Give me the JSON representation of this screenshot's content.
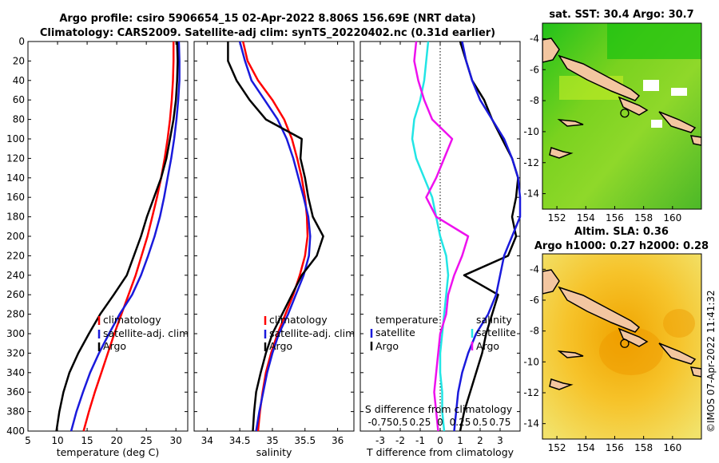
{
  "title": {
    "line1": "Argo profile: csiro 5906654_15 02-Apr-2022 8.806S 156.69E (NRT data)",
    "line2": "Climatology: CARS2009. Satellite-adj clim: synTS_20220402.nc (0.31d earlier)"
  },
  "side_stamp": "©IMOS 07-Apr-2022 11:41:32",
  "colors": {
    "climatology": "#ff0000",
    "satellite": "#1a1adc",
    "argo": "#000000",
    "t_diff": "#22e5e5",
    "s_diff": "#ee11ee"
  },
  "chart_data": [
    {
      "type": "line",
      "id": "temperature",
      "xlabel": "temperature (deg C)",
      "ylabel": "",
      "xlim": [
        5,
        32
      ],
      "ylim": [
        400,
        0
      ],
      "xticks": [
        "5",
        "10",
        "15",
        "20",
        "25",
        "30"
      ],
      "xtick_values": [
        5,
        10,
        15,
        20,
        25,
        30
      ],
      "yticks": [
        "0",
        "20",
        "40",
        "60",
        "80",
        "100",
        "120",
        "140",
        "160",
        "180",
        "200",
        "220",
        "240",
        "260",
        "280",
        "300",
        "320",
        "340",
        "360",
        "380",
        "400"
      ],
      "ytick_values": [
        0,
        20,
        40,
        60,
        80,
        100,
        120,
        140,
        160,
        180,
        200,
        220,
        240,
        260,
        280,
        300,
        320,
        340,
        360,
        380,
        400
      ],
      "legend": [
        "climatology",
        "satellite-adj. clim",
        "Argo"
      ],
      "series": [
        {
          "name": "climatology",
          "color_key": "climatology",
          "x": [
            29.6,
            29.6,
            29.5,
            29.3,
            29.0,
            28.6,
            28.1,
            27.5,
            26.8,
            26.0,
            25.2,
            24.2,
            23.2,
            22.0,
            20.8,
            19.6,
            18.5,
            17.4,
            16.3,
            15.3,
            14.4
          ],
          "y": [
            0,
            20,
            40,
            60,
            80,
            100,
            120,
            140,
            160,
            180,
            200,
            220,
            240,
            260,
            280,
            300,
            320,
            340,
            360,
            380,
            400
          ]
        },
        {
          "name": "satellite-adj. clim",
          "color_key": "satellite",
          "x": [
            30.5,
            30.6,
            30.6,
            30.4,
            30.1,
            29.7,
            29.2,
            28.6,
            28.0,
            27.3,
            26.4,
            25.3,
            24.1,
            22.6,
            20.5,
            18.7,
            17.0,
            15.5,
            14.3,
            13.2,
            12.3
          ],
          "y": [
            0,
            20,
            40,
            60,
            80,
            100,
            120,
            140,
            160,
            180,
            200,
            220,
            240,
            260,
            280,
            300,
            320,
            340,
            360,
            380,
            400
          ]
        },
        {
          "name": "Argo",
          "color_key": "argo",
          "x": [
            30.2,
            30.3,
            30.2,
            30.0,
            29.6,
            29.0,
            28.4,
            27.5,
            26.3,
            25.1,
            24.1,
            22.9,
            21.7,
            19.5,
            17.2,
            15.3,
            13.5,
            12.0,
            11.0,
            10.3,
            9.8
          ],
          "y": [
            0,
            20,
            40,
            60,
            80,
            100,
            120,
            140,
            160,
            180,
            200,
            220,
            240,
            260,
            280,
            300,
            320,
            340,
            360,
            380,
            400
          ]
        }
      ]
    },
    {
      "type": "line",
      "id": "salinity",
      "xlabel": "salinity",
      "xlim": [
        33.8,
        36.25
      ],
      "ylim": [
        400,
        0
      ],
      "xticks": [
        "34",
        "34.5",
        "35",
        "35.5",
        "36"
      ],
      "xtick_values": [
        34,
        34.5,
        35,
        35.5,
        36
      ],
      "legend": [
        "climatology",
        "satellite-adj. clim",
        "Argo"
      ],
      "series": [
        {
          "name": "climatology",
          "color_key": "climatology",
          "x": [
            34.55,
            34.62,
            34.78,
            35.0,
            35.18,
            35.3,
            35.38,
            35.45,
            35.5,
            35.53,
            35.54,
            35.5,
            35.42,
            35.32,
            35.2,
            35.08,
            34.98,
            34.9,
            34.85,
            34.81,
            34.78
          ],
          "y": [
            0,
            20,
            40,
            60,
            80,
            100,
            120,
            140,
            160,
            180,
            200,
            220,
            240,
            260,
            280,
            300,
            320,
            340,
            360,
            380,
            400
          ]
        },
        {
          "name": "satellite-adj. clim",
          "color_key": "satellite",
          "x": [
            34.5,
            34.58,
            34.68,
            34.88,
            35.08,
            35.22,
            35.32,
            35.4,
            35.48,
            35.55,
            35.58,
            35.56,
            35.48,
            35.36,
            35.24,
            35.1,
            35.0,
            34.92,
            34.86,
            34.8,
            34.75
          ],
          "y": [
            0,
            20,
            40,
            60,
            80,
            100,
            120,
            140,
            160,
            180,
            200,
            220,
            240,
            260,
            280,
            300,
            320,
            340,
            360,
            380,
            400
          ]
        },
        {
          "name": "Argo",
          "color_key": "argo",
          "x": [
            34.32,
            34.32,
            34.45,
            34.65,
            34.9,
            35.45,
            35.43,
            35.5,
            35.55,
            35.62,
            35.78,
            35.68,
            35.45,
            35.3,
            35.15,
            35.0,
            34.9,
            34.82,
            34.75,
            34.72,
            34.7
          ],
          "y": [
            0,
            20,
            40,
            60,
            80,
            100,
            120,
            140,
            160,
            180,
            200,
            220,
            240,
            260,
            280,
            300,
            320,
            340,
            360,
            380,
            400
          ]
        }
      ]
    },
    {
      "type": "line",
      "id": "differences",
      "xlabel": "T difference from climatology",
      "xlabel2": "S difference from climatology",
      "xlim": [
        -4,
        4
      ],
      "ylim": [
        400,
        0
      ],
      "xticks": [
        "-3",
        "-2",
        "-1",
        "0",
        "1",
        "2",
        "3"
      ],
      "xtick_values": [
        -3,
        -2,
        -1,
        0,
        1,
        2,
        3
      ],
      "s_ticks": [
        "-0.75",
        "0.5",
        "0.25",
        "0",
        "0.25",
        "0.5",
        "0.75"
      ],
      "legend_left_title": "temperature",
      "legend_right_title": "salinity",
      "legend_left": [
        "satellite",
        "Argo"
      ],
      "legend_right": [
        "satellite",
        "Argo"
      ],
      "series": [
        {
          "name": "temperature satellite",
          "color_key": "t_diff",
          "x": [
            -0.6,
            -0.7,
            -0.8,
            -1.0,
            -1.3,
            -1.4,
            -1.2,
            -0.8,
            -0.4,
            -0.2,
            0.0,
            0.3,
            0.4,
            0.3,
            0.2,
            0.1,
            0.0,
            0.0,
            0.1,
            0.1,
            0.2
          ],
          "y": [
            0,
            20,
            40,
            60,
            80,
            100,
            120,
            140,
            160,
            180,
            200,
            220,
            240,
            260,
            280,
            300,
            320,
            340,
            360,
            380,
            400
          ]
        },
        {
          "name": "temperature Argo",
          "color_key": "argo",
          "x": [
            1.0,
            1.3,
            1.6,
            2.2,
            2.6,
            3.1,
            3.6,
            3.9,
            3.8,
            3.6,
            3.8,
            3.4,
            1.2,
            2.9,
            2.6,
            2.3,
            2.1,
            1.8,
            1.5,
            1.2,
            1.0
          ],
          "y": [
            0,
            20,
            40,
            60,
            80,
            100,
            120,
            140,
            160,
            180,
            200,
            220,
            240,
            260,
            280,
            300,
            320,
            340,
            360,
            380,
            400
          ]
        },
        {
          "name": "salinity satellite",
          "color_key": "satellite",
          "x": [
            1.1,
            1.3,
            1.6,
            2.0,
            2.6,
            3.2,
            3.6,
            3.9,
            4.0,
            4.0,
            3.6,
            3.2,
            3.0,
            2.8,
            2.4,
            1.8,
            1.4,
            1.1,
            0.9,
            0.8,
            0.7
          ],
          "y": [
            0,
            20,
            40,
            60,
            80,
            100,
            120,
            140,
            160,
            180,
            200,
            220,
            240,
            260,
            280,
            300,
            320,
            340,
            360,
            380,
            400
          ]
        },
        {
          "name": "salinity Argo",
          "color_key": "s_diff",
          "x": [
            -1.2,
            -1.3,
            -1.1,
            -0.8,
            -0.4,
            0.6,
            0.2,
            -0.2,
            -0.7,
            -0.2,
            1.4,
            1.1,
            0.7,
            0.4,
            0.3,
            0.0,
            -0.1,
            -0.2,
            -0.3,
            -0.2,
            -0.1
          ],
          "y": [
            0,
            20,
            40,
            60,
            80,
            100,
            120,
            140,
            160,
            180,
            200,
            220,
            240,
            260,
            280,
            300,
            320,
            340,
            360,
            380,
            400
          ]
        }
      ]
    },
    {
      "type": "heatmap",
      "id": "sst_map",
      "title": "sat. SST: 30.4 Argo: 30.7",
      "xlim": [
        151,
        162
      ],
      "ylim": [
        -15,
        -3
      ],
      "xticks": [
        "152",
        "154",
        "156",
        "158",
        "160"
      ],
      "xtick_values": [
        152,
        154,
        156,
        158,
        160
      ],
      "yticks": [
        "-4",
        "-6",
        "-8",
        "-10",
        "-12",
        "-14"
      ],
      "ytick_values": [
        -4,
        -6,
        -8,
        -10,
        -12,
        -14
      ],
      "argo_position": {
        "lon": 156.69,
        "lat": -8.806
      }
    },
    {
      "type": "heatmap",
      "id": "sla_map",
      "title": "Altim. SLA: 0.36",
      "subtitle": "Argo h1000: 0.27 h2000: 0.28",
      "xlim": [
        151,
        162
      ],
      "ylim": [
        -15,
        -3
      ],
      "xticks": [
        "152",
        "154",
        "156",
        "158",
        "160"
      ],
      "xtick_values": [
        152,
        154,
        156,
        158,
        160
      ],
      "yticks": [
        "-4",
        "-6",
        "-8",
        "-10",
        "-12",
        "-14"
      ],
      "ytick_values": [
        -4,
        -6,
        -8,
        -10,
        -12,
        -14
      ],
      "argo_position": {
        "lon": 156.69,
        "lat": -8.806
      }
    }
  ]
}
